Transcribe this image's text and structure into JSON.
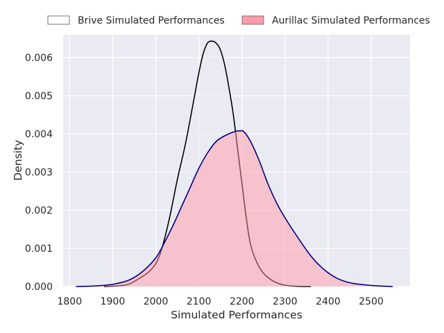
{
  "chart_data": {
    "type": "area",
    "title": "",
    "xlabel": "Simulated Performances",
    "ylabel": "Density",
    "xlim": [
      1785,
      2590
    ],
    "ylim": [
      0,
      0.0066
    ],
    "xticks": [
      1800,
      1900,
      2000,
      2100,
      2200,
      2300,
      2400,
      2500
    ],
    "xtick_labels": [
      "1800",
      "1900",
      "2000",
      "2100",
      "2200",
      "2300",
      "2400",
      "2500"
    ],
    "yticks": [
      0,
      0.001,
      0.002,
      0.003,
      0.004,
      0.005,
      0.006
    ],
    "ytick_labels": [
      "0.000",
      "0.001",
      "0.002",
      "0.003",
      "0.004",
      "0.005",
      "0.006"
    ],
    "grid": true,
    "background": "#eaeaf2",
    "legend_position": "top, above plot",
    "series": [
      {
        "name": "Brive Simulated Performances",
        "line_color": "#000000",
        "fill_color": "#eaeaf2",
        "fill_opacity": 0.6,
        "x": [
          1880,
          1930,
          1960,
          1990,
          2010,
          2030,
          2050,
          2070,
          2090,
          2100,
          2110,
          2120,
          2130,
          2140,
          2150,
          2160,
          2170,
          2180,
          2190,
          2200,
          2210,
          2220,
          2235,
          2250,
          2270,
          2290,
          2310,
          2330,
          2360
        ],
        "y": [
          0,
          4e-05,
          0.0002,
          0.00045,
          0.00085,
          0.0017,
          0.0028,
          0.0038,
          0.005,
          0.0056,
          0.0061,
          0.00638,
          0.00643,
          0.00638,
          0.0062,
          0.0058,
          0.0052,
          0.0045,
          0.0036,
          0.0027,
          0.0018,
          0.0011,
          0.00062,
          0.00035,
          0.00016,
          6e-05,
          2e-05,
          5e-06,
          0
        ]
      },
      {
        "name": "Aurillac Simulated Performances",
        "line_color": "#000080",
        "fill_color": "#ff9aa8",
        "fill_opacity": 0.5,
        "x": [
          1815,
          1850,
          1880,
          1910,
          1940,
          1970,
          2000,
          2020,
          2040,
          2060,
          2080,
          2100,
          2120,
          2140,
          2160,
          2180,
          2195,
          2205,
          2220,
          2240,
          2260,
          2280,
          2300,
          2330,
          2360,
          2390,
          2420,
          2450,
          2480,
          2510,
          2550
        ],
        "y": [
          0,
          1e-05,
          3e-05,
          8e-05,
          0.00018,
          0.0004,
          0.00075,
          0.00115,
          0.0016,
          0.0021,
          0.0026,
          0.0031,
          0.0035,
          0.0038,
          0.00395,
          0.00405,
          0.00408,
          0.00405,
          0.0038,
          0.0033,
          0.0027,
          0.0022,
          0.0018,
          0.00128,
          0.0008,
          0.00045,
          0.00022,
          0.0001,
          5e-05,
          2e-05,
          0
        ]
      }
    ]
  }
}
